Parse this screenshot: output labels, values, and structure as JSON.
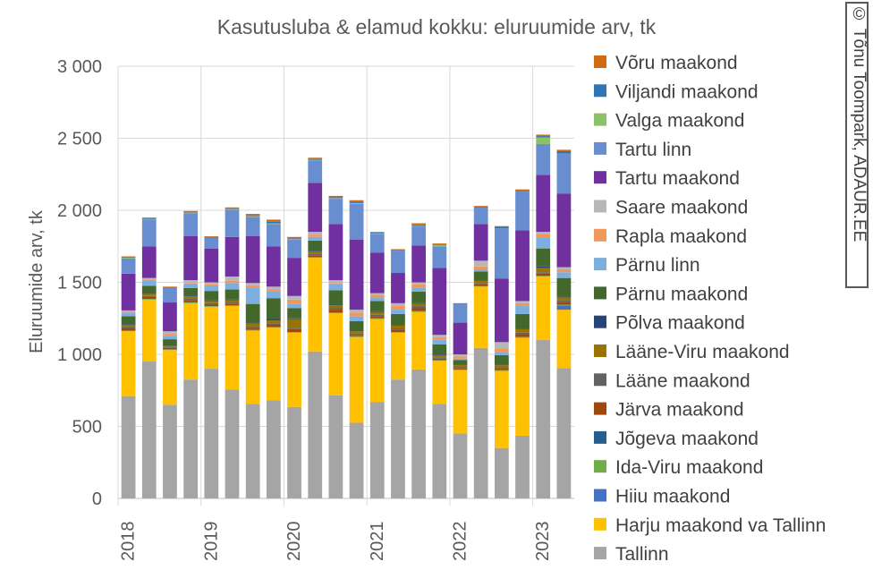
{
  "chart_data": {
    "type": "bar",
    "stacked": true,
    "title": "Kasutusluba & elamud kokku: eluruumide arv, tk",
    "ylabel": "Eluruumide arv, tk",
    "xlabel": "",
    "ylim": [
      0,
      3000
    ],
    "yticks": [
      "0",
      "500",
      "1 000",
      "1 500",
      "2 000",
      "2 500",
      "3 000"
    ],
    "ytick_values": [
      0,
      500,
      1000,
      1500,
      2000,
      2500,
      3000
    ],
    "xtick_labels": [
      "2018",
      "2019",
      "2020",
      "2021",
      "2022",
      "2023"
    ],
    "grid": "horizontal and vertical (yearly)",
    "legend_position": "right",
    "categories": [
      "2018Q1",
      "2018Q2",
      "2018Q3",
      "2018Q4",
      "2019Q1",
      "2019Q2",
      "2019Q3",
      "2019Q4",
      "2020Q1",
      "2020Q2",
      "2020Q3",
      "2020Q4",
      "2021Q1",
      "2021Q2",
      "2021Q3",
      "2021Q4",
      "2022Q1",
      "2022Q2",
      "2022Q3",
      "2022Q4",
      "2023Q1",
      "2023Q2"
    ],
    "series": [
      {
        "name": "Tallinn",
        "color": "#A5A5A5",
        "values": [
          710,
          950,
          650,
          825,
          900,
          755,
          655,
          680,
          635,
          1020,
          715,
          525,
          670,
          825,
          895,
          655,
          450,
          1045,
          350,
          435,
          1100,
          905
        ]
      },
      {
        "name": "Harju maakond va Tallinn",
        "color": "#FFC000",
        "values": [
          450,
          430,
          380,
          530,
          430,
          580,
          510,
          505,
          515,
          650,
          570,
          595,
          575,
          325,
          400,
          300,
          440,
          425,
          535,
          680,
          440,
          405
        ]
      },
      {
        "name": "Hiiu maakond",
        "color": "#4472C4",
        "values": [
          0,
          0,
          0,
          0,
          0,
          0,
          0,
          0,
          0,
          0,
          0,
          0,
          0,
          0,
          0,
          0,
          0,
          0,
          0,
          0,
          0,
          30
        ]
      },
      {
        "name": "Ida-Viru maakond",
        "color": "#70AD47",
        "values": [
          5,
          5,
          5,
          5,
          5,
          5,
          5,
          5,
          5,
          5,
          5,
          5,
          5,
          5,
          5,
          5,
          5,
          5,
          5,
          5,
          5,
          5
        ]
      },
      {
        "name": "Jõgeva maakond",
        "color": "#255E91",
        "values": [
          0,
          0,
          0,
          5,
          0,
          0,
          0,
          0,
          0,
          0,
          0,
          0,
          0,
          0,
          0,
          0,
          0,
          0,
          0,
          0,
          0,
          0
        ]
      },
      {
        "name": "Järva maakond",
        "color": "#9E480E",
        "values": [
          15,
          15,
          10,
          10,
          10,
          10,
          15,
          15,
          20,
          10,
          20,
          10,
          15,
          15,
          20,
          10,
          10,
          10,
          15,
          20,
          15,
          20
        ]
      },
      {
        "name": "Lääne maakond",
        "color": "#636363",
        "values": [
          10,
          5,
          5,
          15,
          10,
          10,
          10,
          10,
          10,
          15,
          10,
          10,
          10,
          10,
          15,
          10,
          5,
          10,
          5,
          10,
          10,
          10
        ]
      },
      {
        "name": "Lääne-Viru maakond",
        "color": "#997300",
        "values": [
          15,
          15,
          10,
          15,
          15,
          15,
          20,
          20,
          60,
          15,
          20,
          15,
          20,
          20,
          15,
          15,
          15,
          15,
          15,
          25,
          30,
          20
        ]
      },
      {
        "name": "Põlva maakond",
        "color": "#264478",
        "values": [
          5,
          5,
          5,
          5,
          5,
          5,
          5,
          10,
          5,
          5,
          5,
          5,
          5,
          5,
          5,
          5,
          5,
          5,
          5,
          5,
          10,
          5
        ]
      },
      {
        "name": "Pärnu maakond",
        "color": "#43682B",
        "values": [
          55,
          50,
          40,
          50,
          65,
          70,
          130,
          145,
          70,
          70,
          100,
          65,
          70,
          75,
          80,
          70,
          30,
          60,
          65,
          100,
          125,
          130
        ]
      },
      {
        "name": "Pärnu linn",
        "color": "#7CAFDD",
        "values": [
          25,
          40,
          20,
          30,
          35,
          45,
          110,
          45,
          30,
          25,
          40,
          35,
          25,
          30,
          25,
          30,
          10,
          15,
          20,
          55,
          75,
          40
        ]
      },
      {
        "name": "Rapla maakond",
        "color": "#F1975A",
        "values": [
          5,
          5,
          15,
          5,
          10,
          15,
          20,
          15,
          30,
          15,
          10,
          25,
          15,
          25,
          25,
          20,
          15,
          20,
          25,
          20,
          25,
          20
        ]
      },
      {
        "name": "Saare maakond",
        "color": "#B7B7B7",
        "values": [
          10,
          10,
          20,
          20,
          15,
          30,
          15,
          20,
          25,
          20,
          20,
          20,
          15,
          20,
          15,
          15,
          15,
          40,
          45,
          15,
          15,
          15
        ]
      },
      {
        "name": "Tartu maakond",
        "color": "#7030A0",
        "values": [
          255,
          220,
          200,
          305,
          235,
          275,
          325,
          280,
          265,
          340,
          390,
          485,
          280,
          210,
          255,
          465,
          220,
          255,
          440,
          490,
          395,
          510
        ]
      },
      {
        "name": "Tartu linn",
        "color": "#698ED0",
        "values": [
          105,
          185,
          100,
          160,
          75,
          190,
          135,
          155,
          125,
          155,
          175,
          250,
          130,
          155,
          130,
          150,
          130,
          115,
          350,
          270,
          215,
          280
        ]
      },
      {
        "name": "Valga maakond",
        "color": "#8CC168",
        "values": [
          5,
          5,
          0,
          5,
          0,
          5,
          5,
          5,
          5,
          5,
          5,
          5,
          5,
          0,
          5,
          10,
          0,
          0,
          0,
          0,
          45,
          0
        ]
      },
      {
        "name": "Viljandi maakond",
        "color": "#2E75B6",
        "values": [
          5,
          5,
          5,
          5,
          5,
          5,
          5,
          10,
          5,
          5,
          5,
          10,
          5,
          5,
          5,
          5,
          5,
          5,
          10,
          5,
          10,
          15
        ]
      },
      {
        "name": "Võru maakond",
        "color": "#D26A12",
        "values": [
          5,
          5,
          5,
          5,
          5,
          5,
          10,
          15,
          10,
          10,
          10,
          10,
          5,
          5,
          15,
          5,
          0,
          5,
          5,
          10,
          10,
          10
        ]
      }
    ]
  },
  "credit": "© Tõnu Toompark, ADAUR.EE"
}
